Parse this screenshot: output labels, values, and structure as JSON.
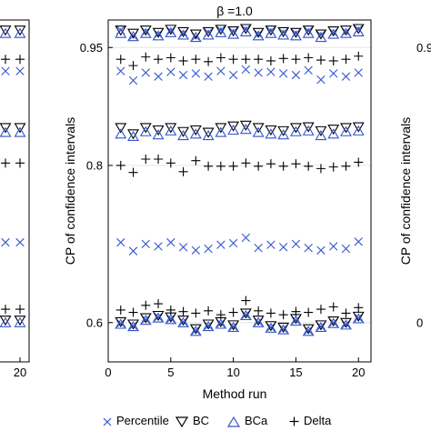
{
  "chart_data": {
    "type": "scatter",
    "title": "β =1.0",
    "xlabel": "Method run",
    "ylabel": "CP of confidence intervals",
    "xlim": [
      0,
      21
    ],
    "ylim": [
      0.55,
      0.985
    ],
    "xticks": [
      0,
      5,
      10,
      15,
      20
    ],
    "yticks": [
      0.6,
      0.8,
      0.95
    ],
    "ytick_labels": [
      "0.6",
      "0.8",
      "0.95"
    ],
    "grid": "horizontal at y ticks",
    "legend_position": "bottom",
    "series": [
      {
        "name": "Percentile",
        "marker": "x",
        "color": "#3355cc",
        "x": [
          1,
          2,
          3,
          4,
          5,
          6,
          7,
          8,
          9,
          10,
          11,
          12,
          13,
          14,
          15,
          16,
          17,
          18,
          19,
          20
        ],
        "values": [
          [
            0.599,
            0.92,
            0.702,
            0.972
          ],
          [
            0.596,
            0.908,
            0.691,
            0.965
          ],
          [
            0.604,
            0.918,
            0.7,
            0.97
          ],
          [
            0.607,
            0.913,
            0.697,
            0.967
          ],
          [
            0.605,
            0.919,
            0.702,
            0.971
          ],
          [
            0.601,
            0.915,
            0.696,
            0.968
          ],
          [
            0.59,
            0.917,
            0.692,
            0.964
          ],
          [
            0.596,
            0.913,
            0.694,
            0.969
          ],
          [
            0.599,
            0.92,
            0.699,
            0.972
          ],
          [
            0.595,
            0.915,
            0.701,
            0.97
          ],
          [
            0.61,
            0.922,
            0.708,
            0.973
          ],
          [
            0.601,
            0.918,
            0.695,
            0.967
          ],
          [
            0.594,
            0.919,
            0.699,
            0.971
          ],
          [
            0.592,
            0.917,
            0.696,
            0.969
          ],
          [
            0.603,
            0.915,
            0.7,
            0.968
          ],
          [
            0.59,
            0.921,
            0.695,
            0.971
          ],
          [
            0.595,
            0.909,
            0.692,
            0.966
          ],
          [
            0.6,
            0.917,
            0.697,
            0.969
          ],
          [
            0.598,
            0.913,
            0.694,
            0.97
          ],
          [
            0.606,
            0.918,
            0.703,
            0.973
          ]
        ]
      },
      {
        "name": "BC",
        "marker": "triangle-down",
        "color": "#000000",
        "x": [
          1,
          2,
          3,
          4,
          5,
          6,
          7,
          8,
          9,
          10,
          11,
          12,
          13,
          14,
          15,
          16,
          17,
          18,
          19,
          20
        ],
        "values": [
          [
            0.601,
            0.848,
            0.972
          ],
          [
            0.598,
            0.84,
            0.968
          ],
          [
            0.606,
            0.848,
            0.972
          ],
          [
            0.609,
            0.845,
            0.969
          ],
          [
            0.607,
            0.848,
            0.973
          ],
          [
            0.603,
            0.843,
            0.97
          ],
          [
            0.592,
            0.845,
            0.967
          ],
          [
            0.598,
            0.842,
            0.97
          ],
          [
            0.601,
            0.848,
            0.973
          ],
          [
            0.597,
            0.85,
            0.971
          ],
          [
            0.612,
            0.851,
            0.974
          ],
          [
            0.603,
            0.848,
            0.969
          ],
          [
            0.596,
            0.845,
            0.972
          ],
          [
            0.594,
            0.844,
            0.97
          ],
          [
            0.605,
            0.848,
            0.969
          ],
          [
            0.592,
            0.849,
            0.972
          ],
          [
            0.597,
            0.844,
            0.967
          ],
          [
            0.602,
            0.846,
            0.971
          ],
          [
            0.6,
            0.848,
            0.972
          ],
          [
            0.608,
            0.849,
            0.974
          ]
        ]
      },
      {
        "name": "BCa",
        "marker": "triangle-up",
        "color": "#3355cc",
        "x": [
          1,
          2,
          3,
          4,
          5,
          6,
          7,
          8,
          9,
          10,
          11,
          12,
          13,
          14,
          15,
          16,
          17,
          18,
          19,
          20
        ],
        "values": [
          [
            0.598,
            0.84,
            0.968
          ],
          [
            0.595,
            0.837,
            0.964
          ],
          [
            0.603,
            0.843,
            0.968
          ],
          [
            0.606,
            0.839,
            0.965
          ],
          [
            0.604,
            0.844,
            0.969
          ],
          [
            0.6,
            0.838,
            0.966
          ],
          [
            0.589,
            0.84,
            0.963
          ],
          [
            0.595,
            0.838,
            0.966
          ],
          [
            0.598,
            0.842,
            0.969
          ],
          [
            0.594,
            0.845,
            0.967
          ],
          [
            0.609,
            0.846,
            0.97
          ],
          [
            0.6,
            0.842,
            0.965
          ],
          [
            0.593,
            0.84,
            0.968
          ],
          [
            0.591,
            0.839,
            0.966
          ],
          [
            0.602,
            0.843,
            0.965
          ],
          [
            0.589,
            0.844,
            0.968
          ],
          [
            0.594,
            0.838,
            0.963
          ],
          [
            0.599,
            0.84,
            0.967
          ],
          [
            0.597,
            0.843,
            0.968
          ],
          [
            0.605,
            0.844,
            0.97
          ]
        ]
      },
      {
        "name": "Delta",
        "marker": "plus",
        "color": "#000000",
        "x": [
          1,
          2,
          3,
          4,
          5,
          6,
          7,
          8,
          9,
          10,
          11,
          12,
          13,
          14,
          15,
          16,
          17,
          18,
          19,
          20
        ],
        "values": [
          [
            0.616,
            0.8,
            0.935
          ],
          [
            0.613,
            0.791,
            0.927
          ],
          [
            0.622,
            0.808,
            0.938
          ],
          [
            0.624,
            0.808,
            0.935
          ],
          [
            0.616,
            0.803,
            0.937
          ],
          [
            0.614,
            0.792,
            0.933
          ],
          [
            0.612,
            0.806,
            0.935
          ],
          [
            0.615,
            0.799,
            0.932
          ],
          [
            0.61,
            0.799,
            0.937
          ],
          [
            0.613,
            0.799,
            0.935
          ],
          [
            0.628,
            0.803,
            0.935
          ],
          [
            0.615,
            0.799,
            0.935
          ],
          [
            0.612,
            0.802,
            0.933
          ],
          [
            0.61,
            0.799,
            0.936
          ],
          [
            0.614,
            0.802,
            0.935
          ],
          [
            0.613,
            0.799,
            0.937
          ],
          [
            0.617,
            0.796,
            0.934
          ],
          [
            0.62,
            0.798,
            0.933
          ],
          [
            0.612,
            0.799,
            0.935
          ],
          [
            0.619,
            0.804,
            0.939
          ]
        ]
      }
    ],
    "left_panel_partial": {
      "xticks": [
        20
      ],
      "marker_rows": [
        {
          "series": "BC",
          "y": [
            0.972
          ]
        },
        {
          "series": "BCa",
          "y": [
            0.968
          ]
        },
        {
          "series": "Delta",
          "y": [
            0.935
          ]
        },
        {
          "series": "Percentile",
          "y": [
            0.92,
            0.702
          ]
        },
        {
          "series": "BC",
          "y": [
            0.848
          ]
        },
        {
          "series": "BCa",
          "y": [
            0.842
          ]
        },
        {
          "series": "Delta",
          "y": [
            0.803,
            0.617
          ]
        },
        {
          "series": "BC",
          "y": [
            0.603
          ]
        },
        {
          "series": "BCa",
          "y": [
            0.6
          ]
        }
      ]
    },
    "right_panel_partial": {
      "ytick_labels": [
        "0.9",
        "0"
      ],
      "ytick_values": [
        0.95,
        0.6
      ],
      "ylabel": "CP of confidence intervals"
    }
  }
}
